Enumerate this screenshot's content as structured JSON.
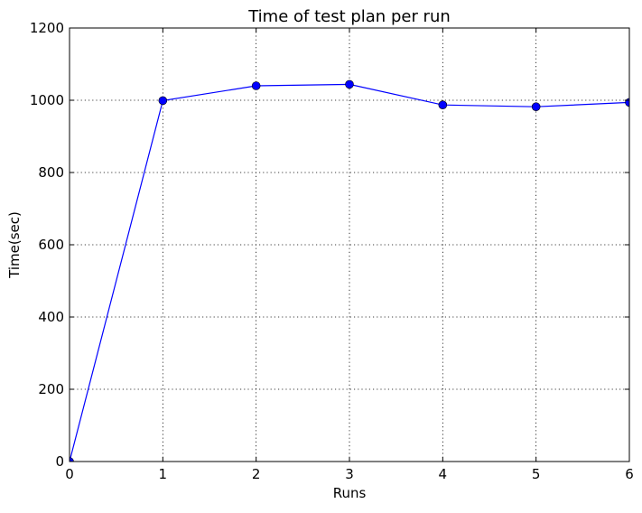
{
  "chart_data": {
    "type": "line",
    "title": "Time of test plan per run",
    "xlabel": "Runs",
    "ylabel": "Time(sec)",
    "xlim": [
      0,
      6
    ],
    "ylim": [
      0,
      1200
    ],
    "xticks": [
      "0",
      "1",
      "2",
      "3",
      "4",
      "5",
      "6"
    ],
    "yticks": [
      "0",
      "200",
      "400",
      "600",
      "800",
      "1000",
      "1200"
    ],
    "grid": true,
    "legend": "none",
    "series": [
      {
        "color": "#0000ff",
        "marker": "circle",
        "x": [
          0,
          1,
          2,
          3,
          4,
          5,
          6
        ],
        "y": [
          0,
          999,
          1040,
          1044,
          987,
          982,
          994
        ]
      }
    ]
  }
}
